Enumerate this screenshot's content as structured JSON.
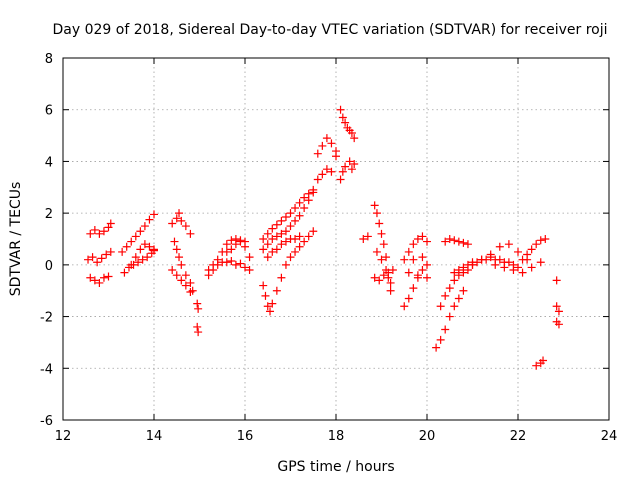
{
  "chart_data": {
    "type": "scatter",
    "title": "Day 029 of 2018, Sidereal Day-to-day VTEC variation (SDTVAR) for receiver roji",
    "xlabel": "GPS time / hours",
    "ylabel": "SDTVAR / TECUs",
    "xlim": [
      12,
      24
    ],
    "ylim": [
      -6,
      8
    ],
    "xticks": [
      12,
      14,
      16,
      18,
      20,
      22,
      24
    ],
    "yticks": [
      -6,
      -4,
      -2,
      0,
      2,
      4,
      6,
      8
    ],
    "xtick_labels": [
      "12",
      "14",
      "16",
      "18",
      "20",
      "22",
      "24"
    ],
    "ytick_labels": [
      "-6",
      "-4",
      "-2",
      "0",
      "2",
      "4",
      "6",
      "8"
    ],
    "grid": true,
    "marker": "plus",
    "colors": {
      "points": "#ff0000",
      "axes": "#000000",
      "grid": "#a0a0a0"
    },
    "series": [
      {
        "name": "s1",
        "x": [
          12.6,
          12.7,
          12.8,
          12.9,
          13.0,
          13.05
        ],
        "y": [
          1.2,
          1.35,
          1.2,
          1.3,
          1.45,
          1.6
        ]
      },
      {
        "name": "s2",
        "x": [
          12.55,
          12.65,
          12.75,
          12.85,
          12.95,
          13.05
        ],
        "y": [
          0.2,
          0.3,
          0.1,
          0.25,
          0.4,
          0.5
        ]
      },
      {
        "name": "s3",
        "x": [
          12.6,
          12.7,
          12.8,
          12.9,
          13.0
        ],
        "y": [
          -0.5,
          -0.6,
          -0.7,
          -0.5,
          -0.45
        ]
      },
      {
        "name": "s4",
        "x": [
          13.3,
          13.4,
          13.5,
          13.6,
          13.7,
          13.8,
          13.9,
          14.0
        ],
        "y": [
          0.5,
          0.7,
          0.9,
          1.1,
          1.3,
          1.5,
          1.75,
          1.95
        ]
      },
      {
        "name": "s5",
        "x": [
          13.35,
          13.45,
          13.55,
          13.65,
          13.75,
          13.85,
          13.95,
          14.0
        ],
        "y": [
          -0.3,
          -0.1,
          0.0,
          0.1,
          0.2,
          0.3,
          0.45,
          0.55
        ]
      },
      {
        "name": "s6",
        "x": [
          13.5,
          13.6,
          13.7,
          13.8,
          13.9,
          14.0
        ],
        "y": [
          0.0,
          0.3,
          0.6,
          0.8,
          0.7,
          0.6
        ]
      },
      {
        "name": "s7",
        "x": [
          14.4,
          14.5,
          14.55,
          14.6,
          14.7,
          14.8
        ],
        "y": [
          1.6,
          1.8,
          2.0,
          1.7,
          1.5,
          1.2
        ]
      },
      {
        "name": "s8",
        "x": [
          14.45,
          14.5,
          14.55,
          14.6,
          14.7,
          14.8,
          14.85
        ],
        "y": [
          0.9,
          0.6,
          0.3,
          0.0,
          -0.4,
          -0.7,
          -1.0
        ]
      },
      {
        "name": "s9",
        "x": [
          14.4,
          14.5,
          14.6,
          14.7,
          14.8
        ],
        "y": [
          -0.2,
          -0.4,
          -0.6,
          -0.8,
          -1.05
        ]
      },
      {
        "name": "s10",
        "x": [
          14.95,
          14.97,
          14.95,
          14.97
        ],
        "y": [
          -1.5,
          -1.7,
          -2.4,
          -2.6
        ]
      },
      {
        "name": "s11",
        "x": [
          15.2,
          15.3,
          15.4,
          15.5,
          15.6,
          15.7,
          15.8,
          15.9,
          16.0
        ],
        "y": [
          -0.4,
          -0.2,
          0.2,
          0.5,
          0.8,
          0.95,
          1.0,
          0.95,
          0.9
        ]
      },
      {
        "name": "s12",
        "x": [
          15.2,
          15.3,
          15.4,
          15.5,
          15.6,
          15.7,
          15.8,
          15.9,
          16.0,
          16.1
        ],
        "y": [
          -0.2,
          0.0,
          0.0,
          0.1,
          0.1,
          0.15,
          0.0,
          0.05,
          -0.1,
          -0.2
        ]
      },
      {
        "name": "s13",
        "x": [
          15.6,
          15.7,
          15.8,
          15.9,
          16.0,
          16.1
        ],
        "y": [
          0.5,
          0.6,
          0.8,
          0.9,
          0.7,
          0.3
        ]
      },
      {
        "name": "s14",
        "x": [
          16.4,
          16.5,
          16.6,
          16.7,
          16.8,
          16.9,
          17.0,
          17.1,
          17.2,
          17.3,
          17.4,
          17.5
        ],
        "y": [
          0.6,
          0.8,
          1.0,
          1.1,
          1.2,
          1.3,
          1.5,
          1.7,
          1.9,
          2.2,
          2.5,
          2.8
        ]
      },
      {
        "name": "s15",
        "x": [
          16.4,
          16.5,
          16.6,
          16.7,
          16.8,
          16.9,
          17.0,
          17.1,
          17.2,
          17.3,
          17.4,
          17.5
        ],
        "y": [
          1.0,
          1.2,
          1.4,
          1.55,
          1.7,
          1.85,
          2.0,
          2.2,
          2.4,
          2.6,
          2.75,
          2.9
        ]
      },
      {
        "name": "s16",
        "x": [
          16.4,
          16.45,
          16.5,
          16.55,
          16.6,
          16.7,
          16.8,
          16.9,
          17.0,
          17.1,
          17.2,
          17.3,
          17.4,
          17.5
        ],
        "y": [
          -0.8,
          -1.2,
          -1.6,
          -1.8,
          -1.5,
          -1.0,
          -0.5,
          0.0,
          0.3,
          0.5,
          0.7,
          0.9,
          1.1,
          1.3
        ]
      },
      {
        "name": "s17",
        "x": [
          16.5,
          16.6,
          16.7,
          16.8,
          16.9,
          17.0,
          17.1,
          17.2
        ],
        "y": [
          0.3,
          0.5,
          0.6,
          0.8,
          0.9,
          1.0,
          1.0,
          1.1
        ]
      },
      {
        "name": "s18",
        "x": [
          17.6,
          17.7,
          17.8,
          17.9,
          18.0
        ],
        "y": [
          4.3,
          4.6,
          4.9,
          4.7,
          4.4
        ]
      },
      {
        "name": "s19",
        "x": [
          17.6,
          17.7,
          17.8,
          17.9,
          18.0
        ],
        "y": [
          3.3,
          3.5,
          3.7,
          3.6,
          4.2
        ]
      },
      {
        "name": "s20",
        "x": [
          18.1,
          18.15,
          18.2,
          18.25,
          18.3,
          18.35,
          18.4
        ],
        "y": [
          6.0,
          5.7,
          5.5,
          5.3,
          5.2,
          5.1,
          4.9
        ]
      },
      {
        "name": "s21",
        "x": [
          18.1,
          18.15,
          18.2,
          18.3,
          18.35,
          18.4
        ],
        "y": [
          3.3,
          3.6,
          3.8,
          4.0,
          3.7,
          3.9
        ]
      },
      {
        "name": "s22",
        "x": [
          18.6,
          18.7
        ],
        "y": [
          1.0,
          1.1
        ]
      },
      {
        "name": "s23",
        "x": [
          18.85,
          18.9,
          18.95,
          19.0,
          19.05,
          19.1,
          19.15,
          19.2
        ],
        "y": [
          2.3,
          2.0,
          1.6,
          1.2,
          0.8,
          0.3,
          -0.5,
          -1.0
        ]
      },
      {
        "name": "s24",
        "x": [
          18.9,
          19.0,
          19.1,
          19.2
        ],
        "y": [
          0.5,
          0.2,
          -0.2,
          -0.7
        ]
      },
      {
        "name": "s25",
        "x": [
          18.85,
          18.95,
          19.05,
          19.15,
          19.25
        ],
        "y": [
          -0.5,
          -0.6,
          -0.4,
          -0.3,
          -0.2
        ]
      },
      {
        "name": "s26",
        "x": [
          19.5,
          19.6,
          19.7,
          19.8,
          19.9,
          20.0
        ],
        "y": [
          -1.6,
          -1.3,
          -0.9,
          -0.5,
          -0.2,
          0.0
        ]
      },
      {
        "name": "s27",
        "x": [
          19.5,
          19.6,
          19.7,
          19.8,
          19.9,
          20.0
        ],
        "y": [
          0.2,
          0.5,
          0.8,
          1.0,
          1.1,
          0.9
        ]
      },
      {
        "name": "s28",
        "x": [
          19.6,
          19.7,
          19.8,
          19.9,
          20.0
        ],
        "y": [
          -0.3,
          0.2,
          -0.4,
          0.3,
          -0.5
        ]
      },
      {
        "name": "s29",
        "x": [
          20.2,
          20.3,
          20.4,
          20.5,
          20.6,
          20.7,
          20.8
        ],
        "y": [
          -3.2,
          -2.9,
          -2.5,
          -2.0,
          -1.6,
          -1.3,
          -1.0
        ]
      },
      {
        "name": "s30",
        "x": [
          20.3,
          20.4,
          20.5,
          20.6,
          20.7,
          20.8,
          20.9,
          21.0
        ],
        "y": [
          -1.6,
          -1.2,
          -0.9,
          -0.6,
          -0.4,
          -0.3,
          -0.2,
          0.0
        ]
      },
      {
        "name": "s31",
        "x": [
          20.6,
          20.7,
          20.8,
          20.9,
          21.0,
          21.1,
          21.2,
          21.3,
          21.4,
          21.5,
          21.6,
          21.7,
          21.8,
          21.9,
          22.0
        ],
        "y": [
          -0.3,
          -0.2,
          -0.1,
          0.0,
          0.1,
          0.1,
          0.2,
          0.2,
          0.3,
          0.2,
          0.2,
          0.1,
          0.1,
          0.0,
          -0.1
        ]
      },
      {
        "name": "s32",
        "x": [
          20.4,
          20.5,
          20.6,
          20.7,
          20.8,
          20.9
        ],
        "y": [
          0.9,
          1.0,
          0.95,
          0.9,
          0.85,
          0.8
        ]
      },
      {
        "name": "s33",
        "x": [
          21.0,
          21.2,
          21.4,
          21.6,
          21.8,
          22.0,
          22.2
        ],
        "y": [
          0.0,
          0.2,
          0.4,
          0.7,
          0.8,
          0.5,
          0.2
        ]
      },
      {
        "name": "s34",
        "x": [
          21.5,
          21.7,
          21.9,
          22.1,
          22.3,
          22.5
        ],
        "y": [
          0.0,
          -0.1,
          -0.2,
          -0.3,
          -0.1,
          0.1
        ]
      },
      {
        "name": "s35",
        "x": [
          22.1,
          22.2,
          22.3,
          22.4,
          22.5,
          22.6
        ],
        "y": [
          0.2,
          0.4,
          0.6,
          0.8,
          0.95,
          1.0
        ]
      },
      {
        "name": "s36",
        "x": [
          22.4,
          22.5,
          22.55
        ],
        "y": [
          -3.9,
          -3.8,
          -3.7
        ]
      },
      {
        "name": "s37",
        "x": [
          22.85,
          22.85,
          22.9,
          22.85,
          22.9
        ],
        "y": [
          -0.6,
          -1.6,
          -1.8,
          -2.2,
          -2.3
        ]
      }
    ]
  }
}
